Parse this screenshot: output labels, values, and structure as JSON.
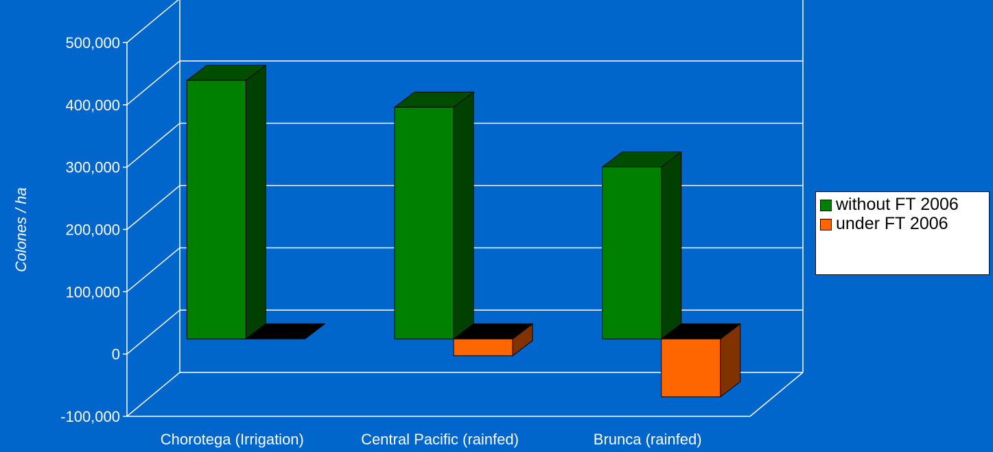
{
  "chart_data": {
    "type": "bar",
    "title": "",
    "xlabel": "",
    "ylabel": "Colones / ha",
    "ylim": [
      -100000,
      500000
    ],
    "yticks": [
      -100000,
      0,
      100000,
      200000,
      300000,
      400000,
      500000
    ],
    "ytick_labels": [
      "-100,000",
      "0",
      "100,000",
      "200,000",
      "300,000",
      "400,000",
      "500,000"
    ],
    "categories": [
      "Chorotega (Irrigation)",
      "Central Pacific (rainfed)",
      "Brunca (rainfed)"
    ],
    "series": [
      {
        "name": "without  FT 2006",
        "values": [
          415000,
          372000,
          276000
        ],
        "color": "#008000"
      },
      {
        "name": "under FT 2006",
        "values": [
          0,
          -27000,
          -93000
        ],
        "color": "#ff6600"
      }
    ],
    "grid": true,
    "legend_position": "right",
    "style": "3d"
  },
  "legend": {
    "items": [
      {
        "label": "without  FT 2006",
        "color": "#008000"
      },
      {
        "label": "under FT 2006",
        "color": "#ff6600"
      }
    ]
  }
}
